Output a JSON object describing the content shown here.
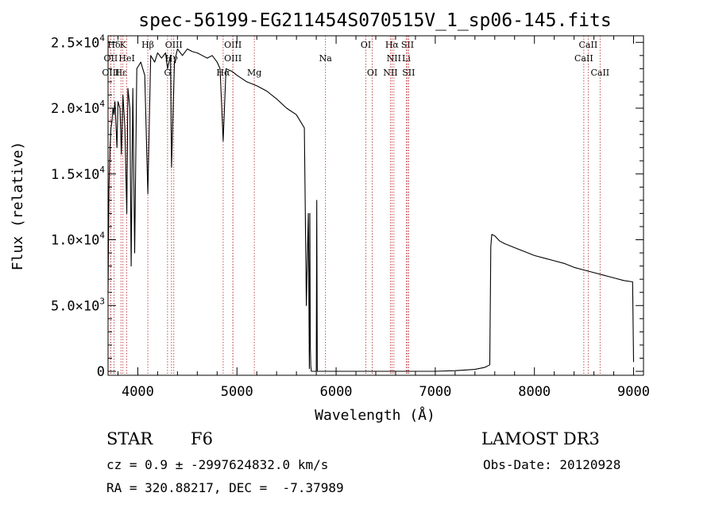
{
  "chart_data": {
    "type": "line",
    "title": "spec-56199-EG211454S070515V_1_sp06-145.fits",
    "xlabel": "Wavelength (Å)",
    "ylabel": "Flux (relative)",
    "xlim": [
      3700,
      9100
    ],
    "ylim": [
      -300,
      25500
    ],
    "xticks": [
      {
        "value": 4000,
        "label": "4000"
      },
      {
        "value": 5000,
        "label": "5000"
      },
      {
        "value": 6000,
        "label": "6000"
      },
      {
        "value": 7000,
        "label": "7000"
      },
      {
        "value": 8000,
        "label": "8000"
      },
      {
        "value": 9000,
        "label": "9000"
      }
    ],
    "yticks": [
      {
        "value": 0,
        "mantissa": "0",
        "exponent": ""
      },
      {
        "value": 5000,
        "mantissa": "5.0×10",
        "exponent": "3"
      },
      {
        "value": 10000,
        "mantissa": "1.0×10",
        "exponent": "4"
      },
      {
        "value": 15000,
        "mantissa": "1.5×10",
        "exponent": "4"
      },
      {
        "value": 20000,
        "mantissa": "2.0×10",
        "exponent": "4"
      },
      {
        "value": 25000,
        "mantissa": "2.5×10",
        "exponent": "4"
      }
    ],
    "series": [
      {
        "name": "flux",
        "x": [
          3700,
          3710,
          3720,
          3730,
          3740,
          3750,
          3760,
          3770,
          3790,
          3800,
          3820,
          3835,
          3850,
          3870,
          3889,
          3900,
          3920,
          3933,
          3950,
          3968,
          3990,
          4030,
          4070,
          4101,
          4130,
          4170,
          4200,
          4240,
          4280,
          4300,
          4330,
          4340,
          4370,
          4400,
          4450,
          4500,
          4550,
          4600,
          4650,
          4700,
          4750,
          4800,
          4830,
          4861,
          4890,
          4950,
          5000,
          5100,
          5200,
          5300,
          5400,
          5500,
          5600,
          5680,
          5700,
          5720,
          5730,
          5735,
          5740,
          5745,
          5750,
          5780,
          5800,
          5805,
          5810,
          5900,
          6000,
          6500,
          7000,
          7200,
          7300,
          7400,
          7500,
          7550,
          7560,
          7570,
          7600,
          7650,
          7700,
          7800,
          7900,
          8000,
          8100,
          8200,
          8300,
          8400,
          8500,
          8600,
          8700,
          8800,
          8900,
          8990,
          9000
        ],
        "y": [
          6000,
          14000,
          17000,
          18500,
          19000,
          20000,
          19500,
          20500,
          17000,
          20500,
          20000,
          16500,
          21000,
          18500,
          12000,
          21500,
          20000,
          8000,
          21500,
          9000,
          23000,
          23500,
          22500,
          13500,
          24000,
          23500,
          24200,
          23800,
          24200,
          23000,
          24000,
          15500,
          23500,
          24500,
          24000,
          24500,
          24300,
          24200,
          24000,
          23800,
          24000,
          23500,
          23000,
          17500,
          23000,
          22800,
          22500,
          22000,
          21700,
          21300,
          20700,
          20000,
          19500,
          18500,
          5000,
          12000,
          200,
          12000,
          2000,
          400,
          0,
          0,
          0,
          13000,
          0,
          0,
          0,
          0,
          0,
          50,
          100,
          150,
          300,
          500,
          9500,
          10400,
          10300,
          9900,
          9700,
          9400,
          9100,
          8800,
          8600,
          8400,
          8200,
          7900,
          7700,
          7500,
          7300,
          7100,
          6900,
          6800,
          700
        ]
      }
    ],
    "line_markers": [
      {
        "label": "Hδ",
        "wavelength": 3760,
        "tier": 0
      },
      {
        "label": "K",
        "wavelength": 3850,
        "tier": 0
      },
      {
        "label": "Hβ",
        "wavelength": 4101,
        "tier": 0
      },
      {
        "label": "OIII",
        "wavelength": 4363,
        "tier": 0
      },
      {
        "label": "OIII",
        "wavelength": 4959,
        "tier": 0
      },
      {
        "label": "OI",
        "wavelength": 6300,
        "tier": 0
      },
      {
        "label": "Hα",
        "wavelength": 6563,
        "tier": 0
      },
      {
        "label": "SII",
        "wavelength": 6720,
        "tier": 0
      },
      {
        "label": "CaII",
        "wavelength": 8542,
        "tier": 0
      },
      {
        "label": "OII",
        "wavelength": 3727,
        "tier": 1
      },
      {
        "label": "HeI",
        "wavelength": 3889,
        "tier": 1
      },
      {
        "label": "Hγ",
        "wavelength": 4340,
        "tier": 1
      },
      {
        "label": "OIII",
        "wavelength": 4959,
        "tier": 1
      },
      {
        "label": "Na",
        "wavelength": 5893,
        "tier": 1
      },
      {
        "label": "NII",
        "wavelength": 6583,
        "tier": 1
      },
      {
        "label": "Li",
        "wavelength": 6708,
        "tier": 1
      },
      {
        "label": "CaII",
        "wavelength": 8498,
        "tier": 1
      },
      {
        "label": "OIII",
        "wavelength": 3727,
        "tier": 2
      },
      {
        "label": "Hε",
        "wavelength": 3830,
        "tier": 2
      },
      {
        "label": "G",
        "wavelength": 4300,
        "tier": 2
      },
      {
        "label": "Hα",
        "wavelength": 4861,
        "tier": 2
      },
      {
        "label": "Mg",
        "wavelength": 5175,
        "tier": 2
      },
      {
        "label": "OI",
        "wavelength": 6364,
        "tier": 2
      },
      {
        "label": "NII",
        "wavelength": 6548,
        "tier": 2
      },
      {
        "label": "SII",
        "wavelength": 6731,
        "tier": 2
      },
      {
        "label": "CaII",
        "wavelength": 8662,
        "tier": 2
      }
    ],
    "grid": false,
    "legend": "none"
  },
  "info": {
    "object_class": "STAR",
    "subclass": "F6",
    "survey": "LAMOST DR3",
    "redshift": "cz = 0.9 ± -2997624832.0 km/s",
    "obs_date": "Obs-Date: 20120928",
    "coords": "RA = 320.88217, DEC =  -7.37989"
  },
  "colors": {
    "spectrum": "#000000",
    "marker_lines": "#b22222",
    "axes": "#000000"
  }
}
